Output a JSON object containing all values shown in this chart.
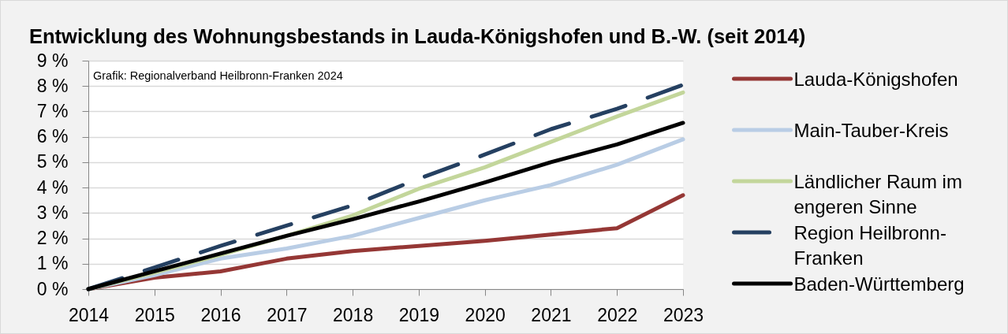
{
  "chart_data": {
    "type": "line",
    "title": "Entwicklung des Wohnungsbestands in Lauda-Königshofen und B.-W. (seit 2014)",
    "annotations": [
      "Grafik: Regionalverband Heilbronn-Franken 2024"
    ],
    "categories": [
      "2014",
      "2015",
      "2016",
      "2017",
      "2018",
      "2019",
      "2020",
      "2021",
      "2022",
      "2023"
    ],
    "series": [
      {
        "name": "Lauda-Königshofen",
        "color": "#953735",
        "values": [
          0,
          0.45,
          0.7,
          1.2,
          1.5,
          1.7,
          1.9,
          2.15,
          2.4,
          3.7
        ]
      },
      {
        "name": "Main-Tauber-Kreis",
        "color": "#b9cde5",
        "values": [
          0,
          0.55,
          1.2,
          1.6,
          2.1,
          2.8,
          3.5,
          4.1,
          4.9,
          5.9
        ]
      },
      {
        "name": "Ländlicher Raum im engeren Sinne",
        "color": "#c3d69b",
        "values": [
          0,
          0.65,
          1.35,
          2.1,
          2.9,
          3.95,
          4.8,
          5.8,
          6.8,
          7.75
        ]
      },
      {
        "name": "Region Heilbronn-Franken",
        "color": "#254061",
        "line_style": "dashed",
        "values": [
          0,
          0.85,
          1.7,
          2.5,
          3.3,
          4.35,
          5.3,
          6.3,
          7.1,
          8.05
        ]
      },
      {
        "name": "Baden-Württemberg",
        "color": "#000000",
        "values": [
          0,
          0.7,
          1.4,
          2.1,
          2.75,
          3.45,
          4.2,
          5.0,
          5.7,
          6.55
        ]
      }
    ],
    "ylim": [
      0,
      9
    ],
    "yticks": [
      {
        "value": 0,
        "label": "0 %"
      },
      {
        "value": 1,
        "label": "1 %"
      },
      {
        "value": 2,
        "label": "2 %"
      },
      {
        "value": 3,
        "label": "3 %"
      },
      {
        "value": 4,
        "label": "4 %"
      },
      {
        "value": 5,
        "label": "5 %"
      },
      {
        "value": 6,
        "label": "6 %"
      },
      {
        "value": 7,
        "label": "7 %"
      },
      {
        "value": 8,
        "label": "8 %"
      },
      {
        "value": 9,
        "label": "9 %"
      }
    ],
    "grid": "y",
    "legend": "right"
  }
}
